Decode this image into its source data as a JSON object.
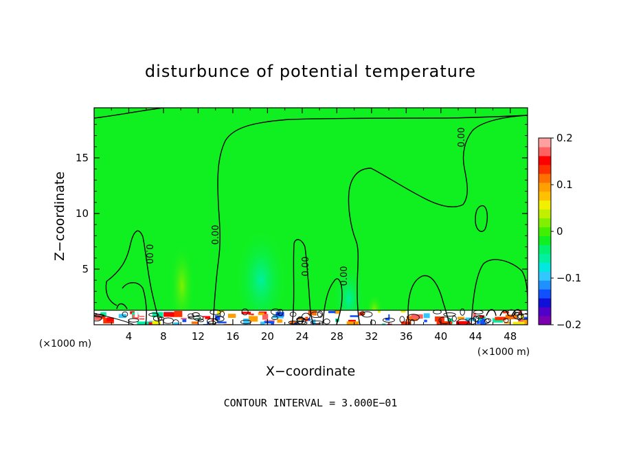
{
  "chart_data": {
    "type": "heatmap",
    "title": "disturbunce of potential temperature",
    "xlabel": "X−coordinate",
    "ylabel": "Z−coordinate",
    "x_unit": "(×1000 m)",
    "xlim": [
      0,
      50
    ],
    "ylim": [
      0,
      19.5
    ],
    "x_ticks": [
      4,
      8,
      12,
      16,
      20,
      24,
      28,
      32,
      36,
      40,
      44,
      48
    ],
    "y_ticks": [
      5,
      10,
      15
    ],
    "contour_label": "0.00",
    "contour_interval_text": "CONTOUR INTERVAL = 3.000E−01",
    "colorbar": {
      "range": [
        -0.2,
        0.2
      ],
      "tick_values": [
        0.2,
        0.1,
        0,
        -0.1,
        -0.2
      ],
      "tick_labels": [
        "0.2",
        "0.1",
        "0",
        "−0.1",
        "−0.2"
      ],
      "colors": [
        "#7a00b0",
        "#5000c8",
        "#1010d8",
        "#1050ff",
        "#1e90ff",
        "#30c8ff",
        "#00e8e0",
        "#00f0a0",
        "#00f070",
        "#10f020",
        "#40f000",
        "#80f000",
        "#c0f000",
        "#f0f000",
        "#ffc000",
        "#ffa000",
        "#ff7000",
        "#ff3000",
        "#ff0000",
        "#ff6060",
        "#ffa0a0"
      ]
    },
    "background_value": 0.02,
    "regions": [
      {
        "label": "warm plume near x 10",
        "x": [
          9,
          11.5
        ],
        "z": [
          1,
          6.5
        ],
        "value": 0.04
      },
      {
        "label": "cool plume near x 20",
        "x": [
          16.5,
          23
        ],
        "z": [
          1,
          9
        ],
        "value": -0.02
      },
      {
        "label": "cool plume near x 30",
        "x": [
          28,
          31
        ],
        "z": [
          1,
          6
        ],
        "value": -0.02
      },
      {
        "label": "surface layer",
        "x": [
          0,
          50
        ],
        "z": [
          0,
          1.3
        ],
        "value": "mixed -0.2 to 0.2"
      }
    ]
  }
}
